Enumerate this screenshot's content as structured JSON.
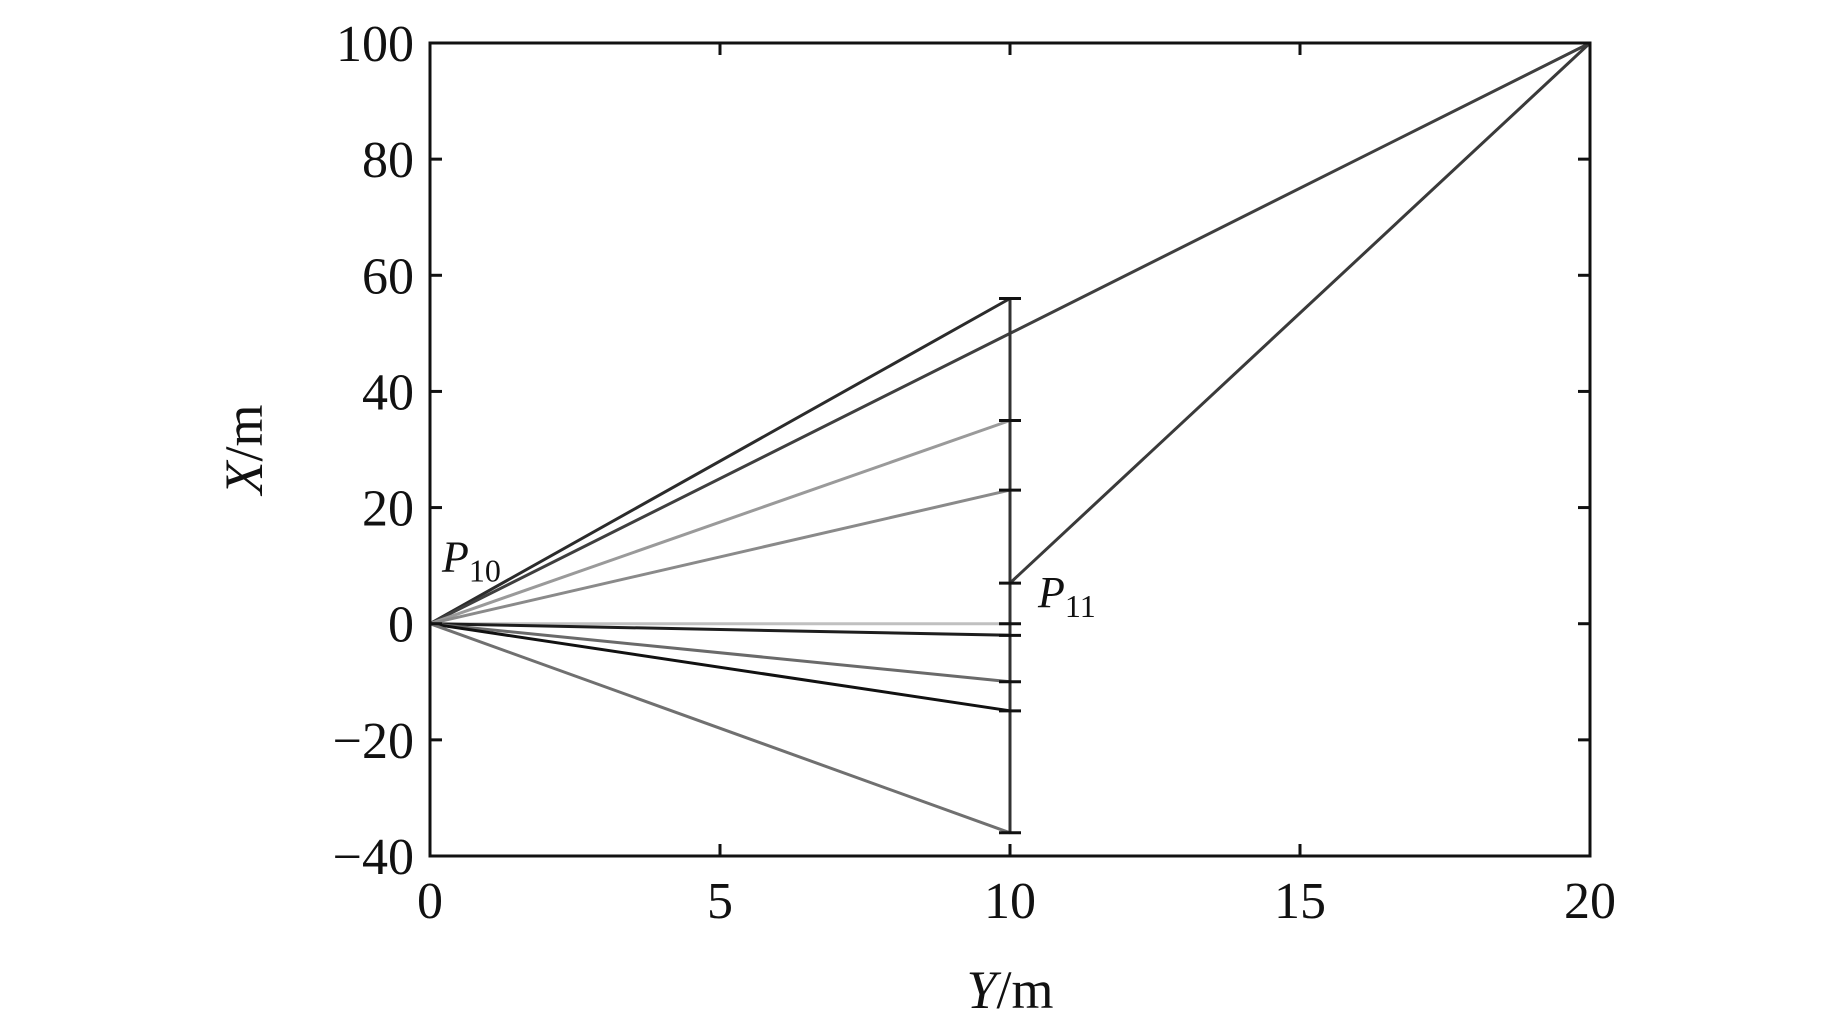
{
  "chart_data": {
    "type": "line",
    "xlabel": "Y/m",
    "ylabel": "X/m",
    "xlim": [
      0,
      20
    ],
    "ylim": [
      -40,
      100
    ],
    "xticks": [
      0,
      5,
      10,
      15,
      20
    ],
    "yticks": [
      -40,
      -20,
      0,
      20,
      40,
      60,
      80,
      100
    ],
    "xtick_labels": [
      "0",
      "5",
      "10",
      "15",
      "20"
    ],
    "ytick_labels": [
      "−40",
      "−20",
      "0",
      "20",
      "40",
      "60",
      "80",
      "100"
    ],
    "grid": false,
    "legend": "none",
    "series": [
      {
        "points": [
          [
            0,
            0
          ],
          [
            10,
            56
          ]
        ],
        "color": "#2b2b2b"
      },
      {
        "points": [
          [
            0,
            0
          ],
          [
            10,
            50
          ],
          [
            20,
            100
          ]
        ],
        "color": "#3f3f3f"
      },
      {
        "points": [
          [
            0,
            0
          ],
          [
            10,
            35
          ]
        ],
        "color": "#9a9a9a"
      },
      {
        "points": [
          [
            0,
            0
          ],
          [
            10,
            23
          ]
        ],
        "color": "#8a8a8a"
      },
      {
        "points": [
          [
            0,
            0
          ],
          [
            10,
            0
          ]
        ],
        "color": "#c0c0c0"
      },
      {
        "points": [
          [
            0,
            0
          ],
          [
            10,
            -2
          ]
        ],
        "color": "#1e1e1e"
      },
      {
        "points": [
          [
            0,
            0
          ],
          [
            10,
            -10
          ]
        ],
        "color": "#6a6a6a"
      },
      {
        "points": [
          [
            0,
            0
          ],
          [
            10,
            -15
          ]
        ],
        "color": "#111111"
      },
      {
        "points": [
          [
            0,
            0
          ],
          [
            10,
            -36
          ]
        ],
        "color": "#707070"
      },
      {
        "points": [
          [
            10,
            7
          ],
          [
            20,
            100
          ]
        ],
        "color": "#3a3a3a"
      }
    ],
    "vertical_segment": {
      "x": 10,
      "y_from": -36,
      "y_to": 56,
      "color": "#333333"
    },
    "markers_x10": [
      56,
      35,
      23,
      7,
      0,
      -2,
      -10,
      -15,
      -36
    ],
    "annotations": [
      {
        "base": "P",
        "sub": "10",
        "x": 0,
        "y": 0
      },
      {
        "base": "P",
        "sub": "11",
        "x": 10,
        "y": 7
      }
    ]
  }
}
